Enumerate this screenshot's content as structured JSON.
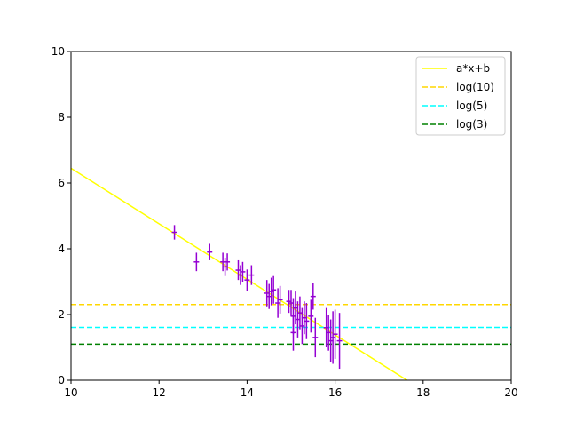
{
  "chart_data": {
    "type": "scatter",
    "title": "",
    "xlabel": "",
    "ylabel": "",
    "xlim": [
      10,
      20
    ],
    "ylim": [
      0,
      10
    ],
    "grid": false,
    "legend_position": "top-right",
    "x_ticks": [
      "10",
      "12",
      "14",
      "16",
      "18",
      "20"
    ],
    "y_ticks": [
      "0",
      "2",
      "4",
      "6",
      "8",
      "10"
    ],
    "fit_line": {
      "name": "a*x+b",
      "color": "#ffff00",
      "slope": -0.845,
      "intercept": 14.9
    },
    "reference_lines": [
      {
        "name": "log(10)",
        "y": 2.302585,
        "color": "#ffd700",
        "style": "dashed"
      },
      {
        "name": "log(5)",
        "y": 1.609438,
        "color": "#00ffff",
        "style": "dashed"
      },
      {
        "name": "log(3)",
        "y": 1.098612,
        "color": "#008000",
        "style": "dashed"
      }
    ],
    "points": {
      "color": "#9400d3",
      "x_err": 0.06,
      "values": [
        [
          12.35,
          4.5,
          0.22
        ],
        [
          12.85,
          3.6,
          0.28
        ],
        [
          13.15,
          3.9,
          0.25
        ],
        [
          13.45,
          3.6,
          0.28
        ],
        [
          13.5,
          3.45,
          0.28
        ],
        [
          13.55,
          3.6,
          0.26
        ],
        [
          13.8,
          3.35,
          0.3
        ],
        [
          13.85,
          3.2,
          0.3
        ],
        [
          13.9,
          3.3,
          0.3
        ],
        [
          14.0,
          3.05,
          0.32
        ],
        [
          14.1,
          3.2,
          0.3
        ],
        [
          14.45,
          2.65,
          0.4
        ],
        [
          14.5,
          2.55,
          0.38
        ],
        [
          14.55,
          2.7,
          0.42
        ],
        [
          14.6,
          2.75,
          0.42
        ],
        [
          14.7,
          2.35,
          0.45
        ],
        [
          14.75,
          2.45,
          0.42
        ],
        [
          14.95,
          2.4,
          0.35
        ],
        [
          15.0,
          2.35,
          0.4
        ],
        [
          15.05,
          1.95,
          0.55
        ],
        [
          15.05,
          1.45,
          0.55
        ],
        [
          15.1,
          2.2,
          0.5
        ],
        [
          15.15,
          1.85,
          0.55
        ],
        [
          15.2,
          2.05,
          0.5
        ],
        [
          15.25,
          1.65,
          0.55
        ],
        [
          15.3,
          1.9,
          0.5
        ],
        [
          15.35,
          1.8,
          0.55
        ],
        [
          15.45,
          1.95,
          0.5
        ],
        [
          15.5,
          2.55,
          0.4
        ],
        [
          15.55,
          1.3,
          0.6
        ],
        [
          15.8,
          1.6,
          0.6
        ],
        [
          15.85,
          1.45,
          0.55
        ],
        [
          15.9,
          1.2,
          0.65
        ],
        [
          15.95,
          1.3,
          0.8
        ],
        [
          16.0,
          1.4,
          0.75
        ],
        [
          16.1,
          1.2,
          0.85
        ]
      ]
    }
  }
}
